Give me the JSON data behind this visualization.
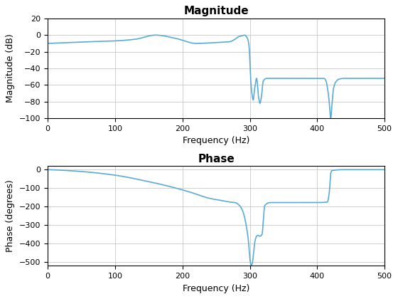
{
  "title_magnitude": "Magnitude",
  "title_phase": "Phase",
  "xlabel": "Frequency (Hz)",
  "ylabel_magnitude": "Magnitude (dB)",
  "ylabel_phase": "Phase (degrees)",
  "xlim": [
    0,
    500
  ],
  "ylim_magnitude": [
    -100,
    20
  ],
  "ylim_phase": [
    -520,
    20
  ],
  "line_color": "#5AABD6",
  "line_width": 1.2,
  "bg_color": "#ffffff",
  "grid_color": "#c8c8c8",
  "yticks_magnitude": [
    -100,
    -80,
    -60,
    -40,
    -20,
    0,
    20
  ],
  "yticks_phase": [
    -500,
    -400,
    -300,
    -200,
    -100,
    0
  ],
  "xticks": [
    0,
    100,
    200,
    300,
    400,
    500
  ],
  "mag_f": [
    0,
    30,
    60,
    100,
    130,
    160,
    190,
    220,
    250,
    270,
    278,
    283,
    288,
    292,
    295,
    297,
    299,
    301,
    303,
    305,
    307,
    310,
    313,
    315,
    317,
    320,
    325,
    330,
    340,
    355,
    370,
    390,
    410,
    413,
    416,
    418,
    420,
    422,
    424,
    427,
    432,
    440,
    460,
    480,
    500
  ],
  "mag_v": [
    -10,
    -9,
    -8,
    -7,
    -5,
    0,
    -4,
    -10,
    -9,
    -8,
    -5,
    -2,
    -1,
    0,
    -2,
    -5,
    -15,
    -50,
    -70,
    -78,
    -65,
    -52,
    -75,
    -82,
    -75,
    -55,
    -52,
    -52,
    -52,
    -52,
    -52,
    -52,
    -52,
    -55,
    -68,
    -82,
    -100,
    -82,
    -65,
    -57,
    -53,
    -52,
    -52,
    -52,
    -52
  ],
  "phase_f": [
    0,
    50,
    100,
    150,
    180,
    210,
    240,
    260,
    270,
    278,
    285,
    290,
    295,
    298,
    300,
    302,
    304,
    306,
    308,
    310,
    312,
    315,
    318,
    322,
    330,
    345,
    360,
    380,
    400,
    415,
    418,
    420,
    422,
    440,
    480,
    500
  ],
  "phase_v": [
    0,
    -10,
    -30,
    -65,
    -90,
    -120,
    -155,
    -168,
    -175,
    -178,
    -195,
    -230,
    -310,
    -390,
    -480,
    -520,
    -500,
    -430,
    -380,
    -360,
    -355,
    -360,
    -350,
    -195,
    -178,
    -178,
    -178,
    -178,
    -178,
    -175,
    -120,
    -20,
    -5,
    0,
    0,
    0
  ]
}
